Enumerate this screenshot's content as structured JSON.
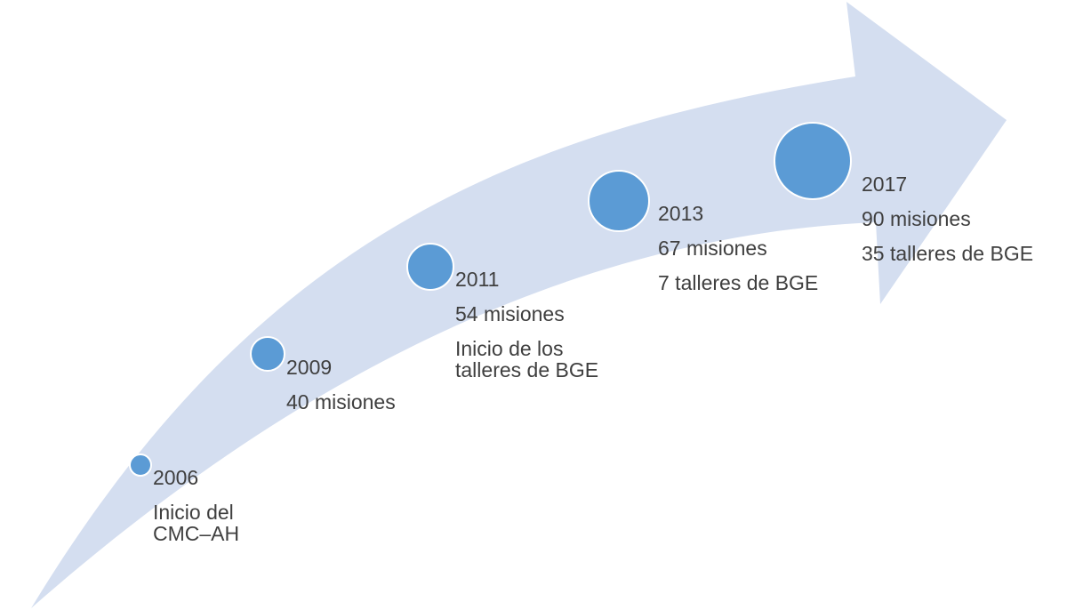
{
  "colors": {
    "arrow_fill": "#d4def0",
    "dot_fill": "#5b9bd5",
    "text": "#3f3f3f"
  },
  "milestones": [
    {
      "year": "2006",
      "lines": [
        "Inicio del",
        "CMC–AH"
      ]
    },
    {
      "year": "2009",
      "lines": [
        "40 misiones"
      ]
    },
    {
      "year": "2011",
      "lines": [
        "54 misiones",
        "Inicio de los",
        "talleres de BGE"
      ]
    },
    {
      "year": "2013",
      "lines": [
        "67 misiones",
        "7 talleres de BGE"
      ]
    },
    {
      "year": "2017",
      "lines": [
        "90 misiones",
        "35 talleres de BGE"
      ]
    }
  ]
}
